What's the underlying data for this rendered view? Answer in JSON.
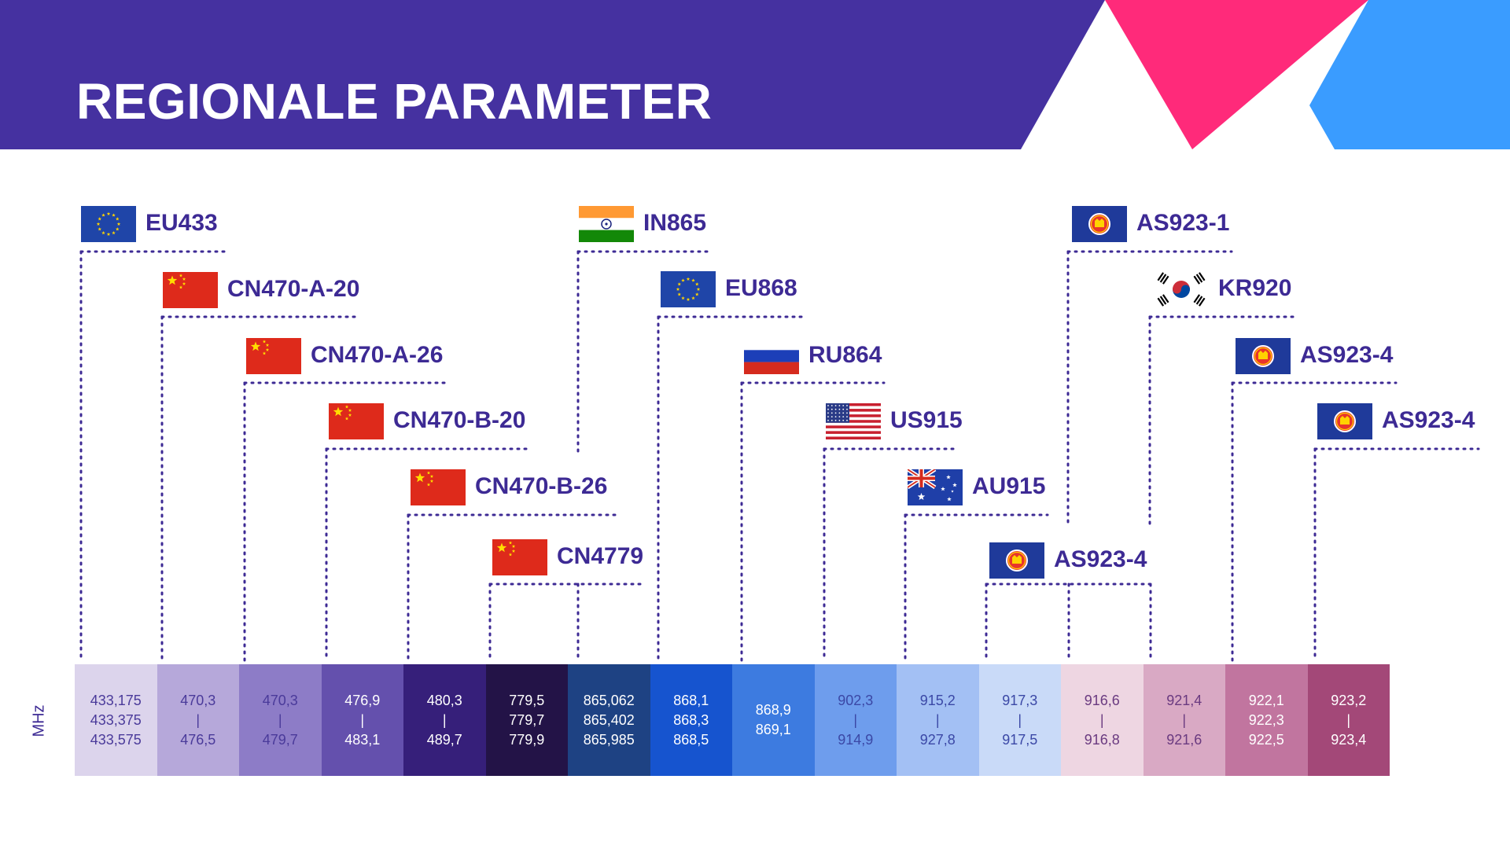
{
  "header": {
    "title": "REGIONALE PARAMETER",
    "colors": {
      "band": "#4531a0",
      "pink": "#ff2a7a",
      "blue": "#3a9cff"
    }
  },
  "regions": [
    {
      "id": "eu433",
      "label": "EU433",
      "flag": "eu-flag-icon"
    },
    {
      "id": "cn470-a-20",
      "label": "CN470-A-20",
      "flag": "china-flag-icon"
    },
    {
      "id": "cn470-a-26",
      "label": "CN470-A-26",
      "flag": "china-flag-icon"
    },
    {
      "id": "cn470-b-20",
      "label": "CN470-B-20",
      "flag": "china-flag-icon"
    },
    {
      "id": "cn470-b-26",
      "label": "CN470-B-26",
      "flag": "china-flag-icon"
    },
    {
      "id": "cn4779",
      "label": "CN4779",
      "flag": "china-flag-icon"
    },
    {
      "id": "in865",
      "label": "IN865",
      "flag": "india-flag-icon"
    },
    {
      "id": "eu868",
      "label": "EU868",
      "flag": "eu-flag-icon"
    },
    {
      "id": "ru864",
      "label": "RU864",
      "flag": "russia-flag-icon"
    },
    {
      "id": "us915",
      "label": "US915",
      "flag": "usa-flag-icon"
    },
    {
      "id": "au915",
      "label": "AU915",
      "flag": "australia-flag-icon"
    },
    {
      "id": "as923-4-low",
      "label": "AS923-4",
      "flag": "asean-flag-icon"
    },
    {
      "id": "as923-1",
      "label": "AS923-1",
      "flag": "asean-flag-icon"
    },
    {
      "id": "kr920",
      "label": "KR920",
      "flag": "south-korea-flag-icon"
    },
    {
      "id": "as923-4-mid",
      "label": "AS923-4",
      "flag": "asean-flag-icon"
    },
    {
      "id": "as923-4-right",
      "label": "AS923-4",
      "flag": "asean-flag-icon"
    }
  ],
  "frequency_bar": {
    "unit": "MHz",
    "cells": [
      {
        "lines": [
          "433,175",
          "433,375",
          "433,575"
        ],
        "bg": "#dcd4ec",
        "fg": "#4a3a9a"
      },
      {
        "lines": [
          "470,3",
          "|",
          "476,5"
        ],
        "bg": "#b6a8da",
        "fg": "#4a3a9a"
      },
      {
        "lines": [
          "470,3",
          "|",
          "479,7"
        ],
        "bg": "#8d7cc7",
        "fg": "#4a3a9a"
      },
      {
        "lines": [
          "476,9",
          "|",
          "483,1"
        ],
        "bg": "#6450ad",
        "fg": "#ffffff"
      },
      {
        "lines": [
          "480,3",
          "|",
          "489,7"
        ],
        "bg": "#361f7a",
        "fg": "#ffffff"
      },
      {
        "lines": [
          "779,5",
          "779,7",
          "779,9"
        ],
        "bg": "#231347",
        "fg": "#ffffff"
      },
      {
        "lines": [
          "865,062",
          "865,402",
          "865,985"
        ],
        "bg": "#1e4283",
        "fg": "#ffffff"
      },
      {
        "lines": [
          "868,1",
          "868,3",
          "868,5"
        ],
        "bg": "#1654cf",
        "fg": "#ffffff"
      },
      {
        "lines": [
          "868,9",
          "869,1"
        ],
        "bg": "#3d7be0",
        "fg": "#ffffff"
      },
      {
        "lines": [
          "902,3",
          "|",
          "914,9"
        ],
        "bg": "#6e9ded",
        "fg": "#3b48a6"
      },
      {
        "lines": [
          "915,2",
          "|",
          "927,8"
        ],
        "bg": "#a3c0f4",
        "fg": "#3b48a6"
      },
      {
        "lines": [
          "917,3",
          "|",
          "917,5"
        ],
        "bg": "#c9daf8",
        "fg": "#3b48a6"
      },
      {
        "lines": [
          "916,6",
          "|",
          "916,8"
        ],
        "bg": "#eed6e2",
        "fg": "#6a3a80"
      },
      {
        "lines": [
          "921,4",
          "|",
          "921,6"
        ],
        "bg": "#d9a9c4",
        "fg": "#6a3a80"
      },
      {
        "lines": [
          "922,1",
          "922,3",
          "922,5"
        ],
        "bg": "#c1759f",
        "fg": "#ffffff"
      },
      {
        "lines": [
          "923,2",
          "|",
          "923,4"
        ],
        "bg": "#a34878",
        "fg": "#ffffff"
      }
    ]
  }
}
